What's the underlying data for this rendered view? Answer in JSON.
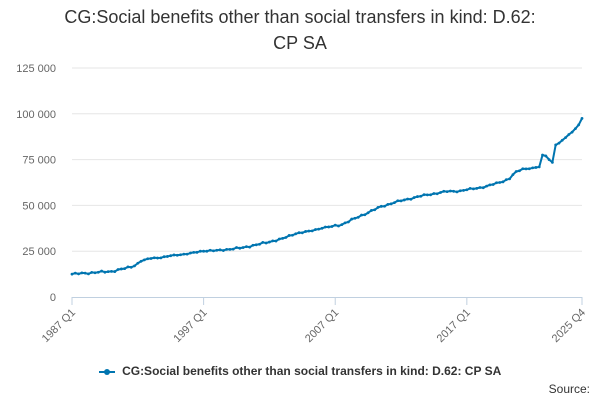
{
  "chart_data": {
    "type": "line",
    "title_lines": [
      "CG:Social benefits other than social transfers in kind: D.62:",
      "CP SA"
    ],
    "x_start": "1987 Q1",
    "x_end": "2025 Q4",
    "x_tick_labels": [
      {
        "label": "1987 Q1",
        "index": 0
      },
      {
        "label": "1997 Q1",
        "index": 40
      },
      {
        "label": "2007 Q1",
        "index": 80
      },
      {
        "label": "2017 Q1",
        "index": 120
      },
      {
        "label": "2025 Q4",
        "index": 155
      }
    ],
    "y_ticks": [
      0,
      25000,
      50000,
      75000,
      100000,
      125000
    ],
    "y_tick_labels": [
      "0",
      "25 000",
      "50 000",
      "75 000",
      "100 000",
      "125 000"
    ],
    "ylim": [
      0,
      125000
    ],
    "xlabel": "",
    "ylabel": "",
    "grid": true,
    "series": [
      {
        "name": "CG:Social benefits other than social transfers in kind: D.62: CP SA",
        "color": "#0075b0",
        "anchors": [
          [
            0,
            12500
          ],
          [
            4,
            13000
          ],
          [
            8,
            13500
          ],
          [
            12,
            14000
          ],
          [
            16,
            15500
          ],
          [
            19,
            17000
          ],
          [
            21,
            19500
          ],
          [
            24,
            21000
          ],
          [
            28,
            22000
          ],
          [
            32,
            22800
          ],
          [
            36,
            24000
          ],
          [
            40,
            25000
          ],
          [
            44,
            25500
          ],
          [
            48,
            26000
          ],
          [
            52,
            27000
          ],
          [
            56,
            28500
          ],
          [
            60,
            30000
          ],
          [
            64,
            32000
          ],
          [
            68,
            34500
          ],
          [
            72,
            36000
          ],
          [
            76,
            37500
          ],
          [
            79,
            38500
          ],
          [
            82,
            39500
          ],
          [
            86,
            43000
          ],
          [
            90,
            46000
          ],
          [
            94,
            49500
          ],
          [
            98,
            51500
          ],
          [
            102,
            53500
          ],
          [
            106,
            55000
          ],
          [
            110,
            56500
          ],
          [
            114,
            57500
          ],
          [
            118,
            58000
          ],
          [
            122,
            59000
          ],
          [
            126,
            60500
          ],
          [
            130,
            62500
          ],
          [
            133,
            64500
          ],
          [
            135,
            68500
          ],
          [
            137,
            70000
          ],
          [
            140,
            70500
          ],
          [
            142,
            71000
          ],
          [
            143,
            77500
          ],
          [
            144,
            77000
          ],
          [
            145,
            75000
          ],
          [
            146,
            73500
          ],
          [
            147,
            83000
          ],
          [
            148,
            84000
          ],
          [
            150,
            87000
          ],
          [
            152,
            90000
          ],
          [
            154,
            94000
          ],
          [
            155,
            97500
          ]
        ]
      }
    ]
  },
  "legend": {
    "label": "CG:Social benefits other than social transfers in kind: D.62: CP SA"
  },
  "source": {
    "label": "Source:"
  }
}
